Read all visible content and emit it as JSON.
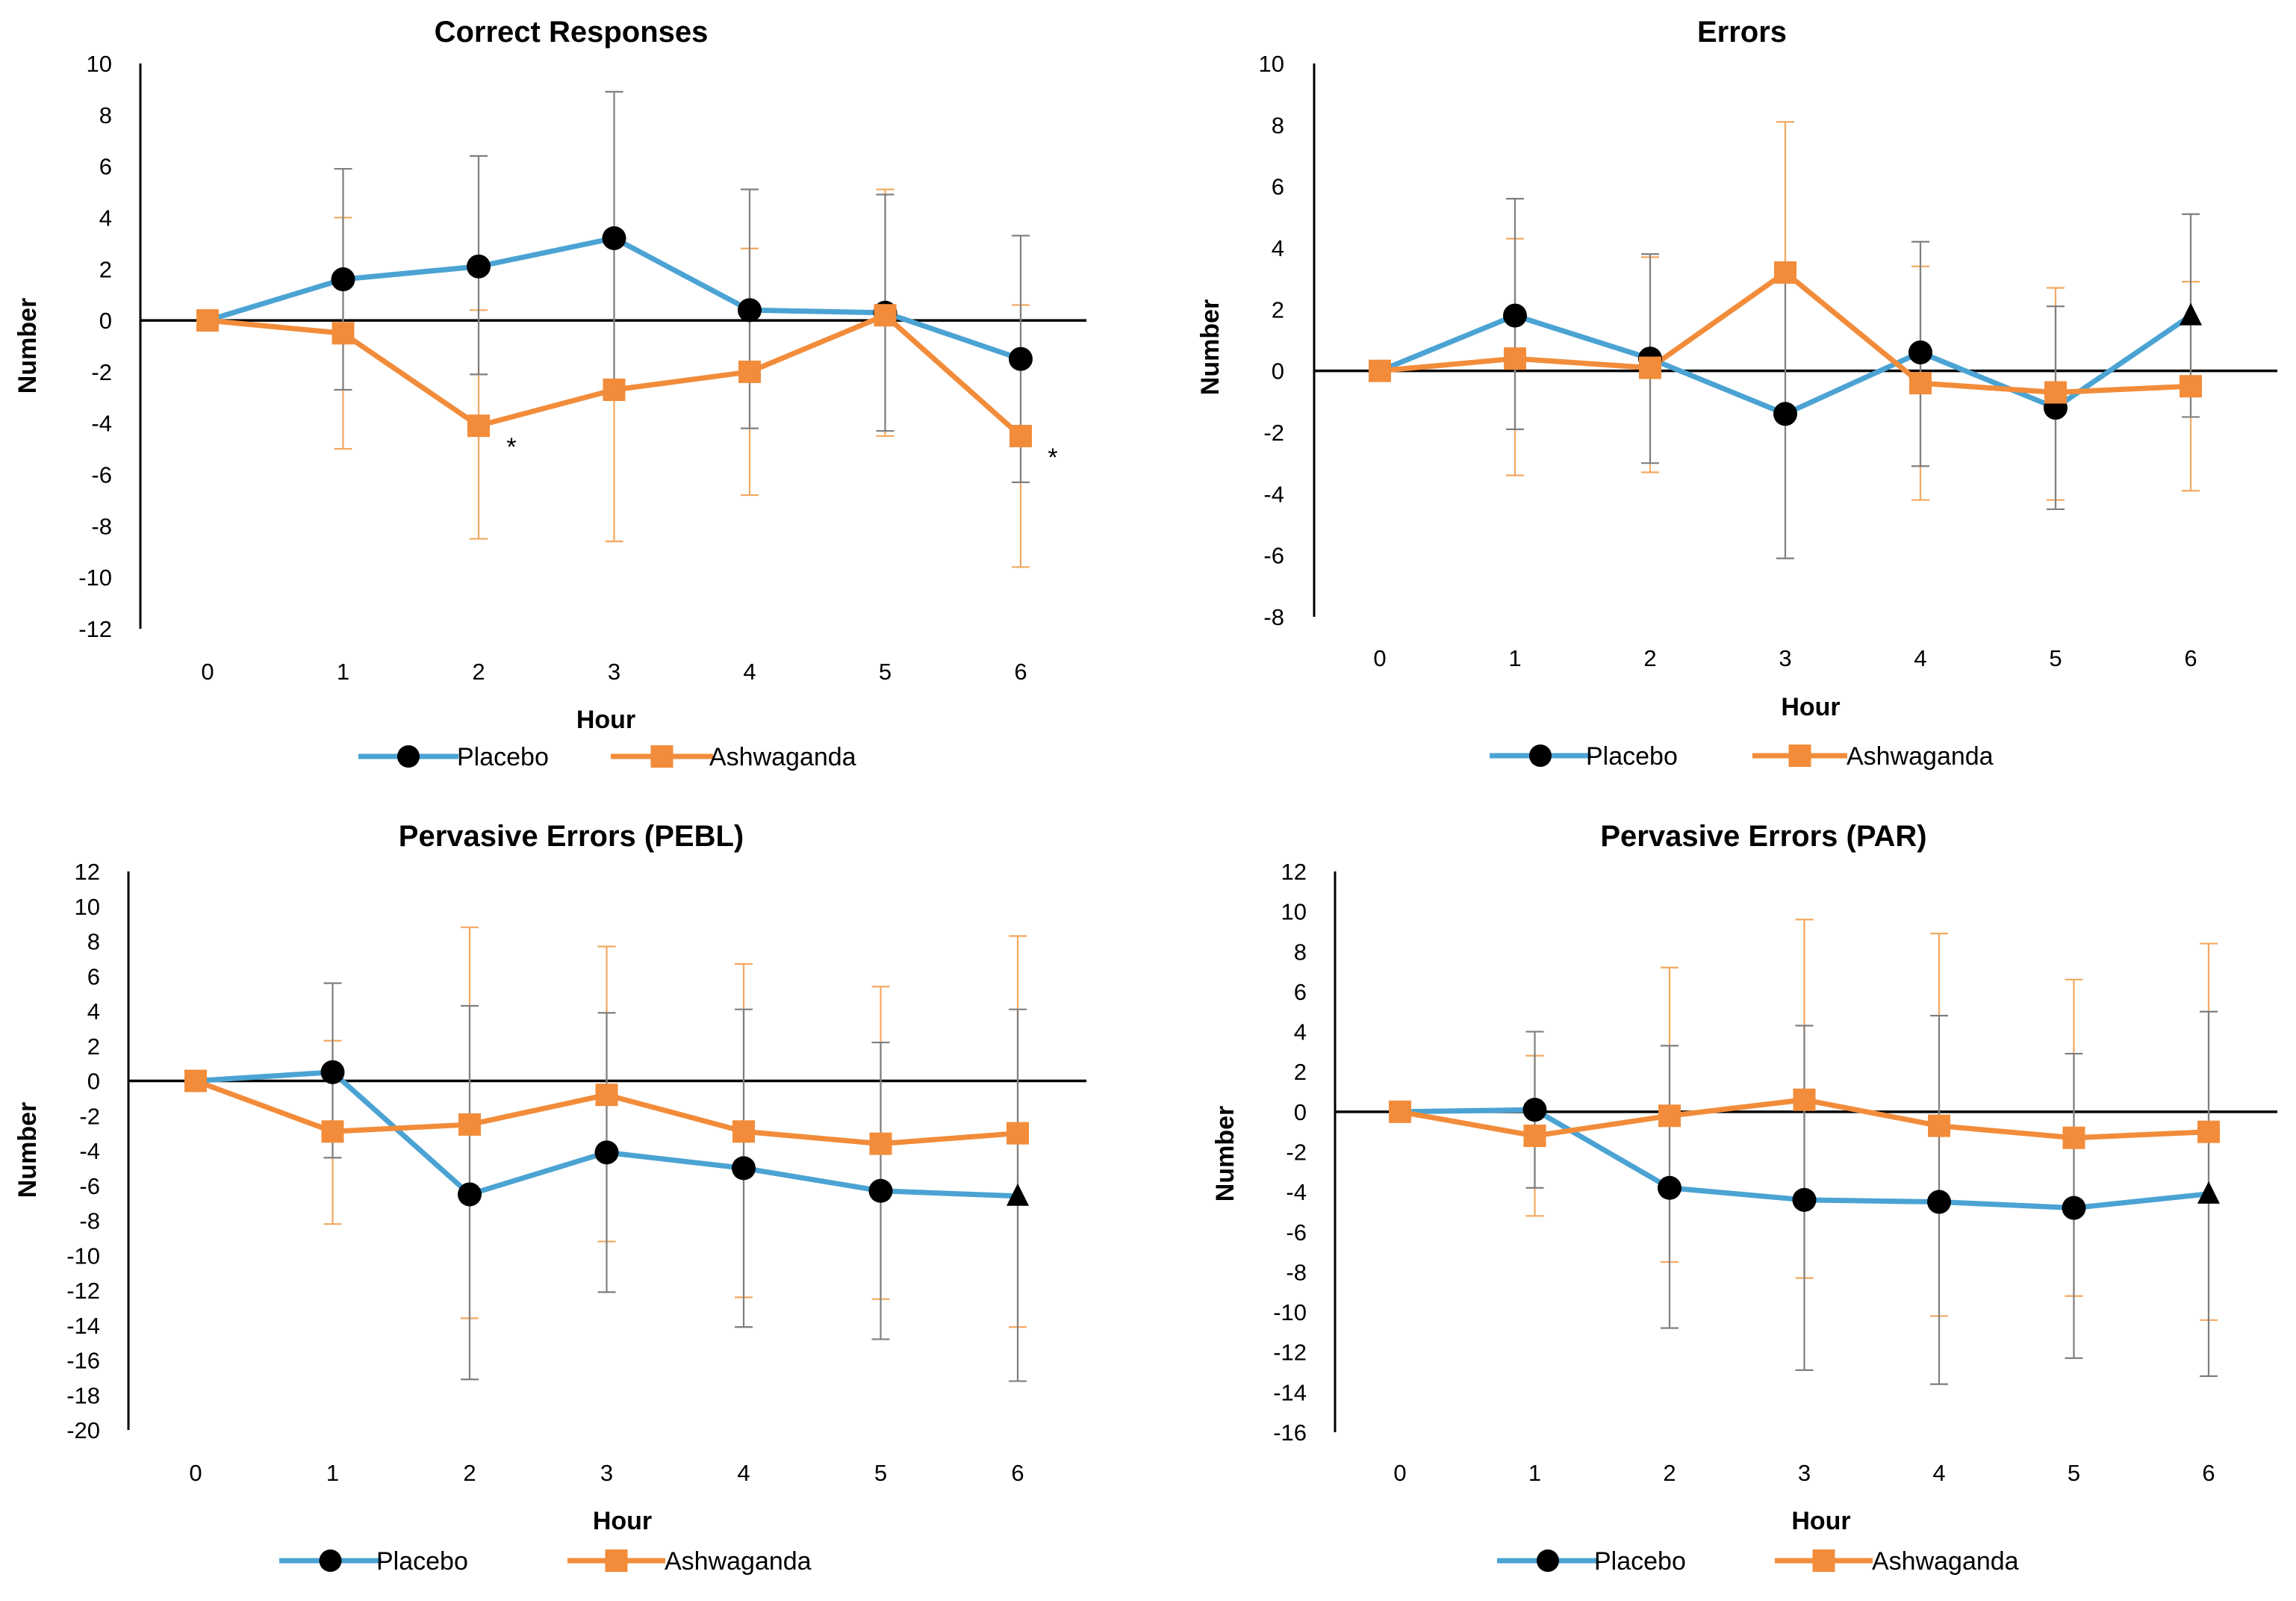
{
  "legend": {
    "series": [
      "Placebo",
      "Ashwaganda"
    ]
  },
  "colors": {
    "placebo": "#4BA3D3",
    "ashwaganda": "#F28C3A",
    "marker_placebo": "#000000",
    "axis": "#000000",
    "error_placebo": "#7f7f7f",
    "error_ashwaganda": "#F2A860"
  },
  "chart_data": [
    {
      "type": "line",
      "title": "Correct Responses",
      "xlabel": "Hour",
      "ylabel": "Number",
      "x": [
        0,
        1,
        2,
        3,
        4,
        5,
        6
      ],
      "ylim": [
        -12,
        10
      ],
      "ytick_step": 2,
      "series": [
        {
          "name": "Placebo",
          "marker": "circle",
          "values": [
            0,
            1.6,
            2.1,
            3.2,
            0.4,
            0.3,
            -1.5
          ],
          "error": [
            [
              0,
              0
            ],
            [
              -2.7,
              5.9
            ],
            [
              -2.1,
              6.4
            ],
            [
              -2.6,
              8.9
            ],
            [
              -4.2,
              5.1
            ],
            [
              -4.3,
              4.9
            ],
            [
              -6.3,
              3.3
            ]
          ],
          "final_marker": "circle"
        },
        {
          "name": "Ashwaganda",
          "marker": "square",
          "values": [
            0,
            -0.5,
            -4.1,
            -2.7,
            -2.0,
            0.2,
            -4.5
          ],
          "error": [
            [
              0,
              0
            ],
            [
              -5.0,
              4.0
            ],
            [
              -8.5,
              0.4
            ],
            [
              -8.6,
              3.1
            ],
            [
              -6.8,
              2.8
            ],
            [
              -4.5,
              5.1
            ],
            [
              -9.6,
              0.6
            ]
          ]
        }
      ],
      "annotations": [
        {
          "x": 2,
          "text": "*"
        },
        {
          "x": 6,
          "text": "*"
        }
      ]
    },
    {
      "type": "line",
      "title": "Errors",
      "xlabel": "Hour",
      "ylabel": "Number",
      "x": [
        0,
        1,
        2,
        3,
        4,
        5,
        6
      ],
      "ylim": [
        -8,
        10
      ],
      "ytick_step": 2,
      "series": [
        {
          "name": "Placebo",
          "marker": "circle",
          "values": [
            0,
            1.8,
            0.4,
            -1.4,
            0.6,
            -1.2,
            1.8
          ],
          "error": [
            [
              0,
              0
            ],
            [
              -1.9,
              5.6
            ],
            [
              -3.0,
              3.8
            ],
            [
              -6.1,
              3.2
            ],
            [
              -3.1,
              4.2
            ],
            [
              -4.5,
              2.1
            ],
            [
              -1.5,
              5.1
            ]
          ],
          "final_marker": "triangle"
        },
        {
          "name": "Ashwaganda",
          "marker": "square",
          "values": [
            0,
            0.4,
            0.1,
            3.2,
            -0.4,
            -0.7,
            -0.5
          ],
          "error": [
            [
              0,
              0
            ],
            [
              -3.4,
              4.3
            ],
            [
              -3.3,
              3.7
            ],
            [
              -1.4,
              8.1
            ],
            [
              -4.2,
              3.4
            ],
            [
              -4.2,
              2.7
            ],
            [
              -3.9,
              2.9
            ]
          ]
        }
      ],
      "annotations": []
    },
    {
      "type": "line",
      "title": "Pervasive Errors (PEBL)",
      "xlabel": "Hour",
      "ylabel": "Number",
      "x": [
        0,
        1,
        2,
        3,
        4,
        5,
        6
      ],
      "ylim": [
        -20,
        12
      ],
      "ytick_step": 2,
      "series": [
        {
          "name": "Placebo",
          "marker": "circle",
          "values": [
            0,
            0.5,
            -6.5,
            -4.1,
            -5.0,
            -6.3,
            -6.6
          ],
          "error": [
            [
              0,
              0
            ],
            [
              -4.4,
              5.6
            ],
            [
              -17.1,
              4.3
            ],
            [
              -12.1,
              3.9
            ],
            [
              -14.1,
              4.1
            ],
            [
              -14.8,
              2.2
            ],
            [
              -17.2,
              4.1
            ]
          ],
          "final_marker": "triangle"
        },
        {
          "name": "Ashwaganda",
          "marker": "square",
          "values": [
            0,
            -2.9,
            -2.5,
            -0.8,
            -2.9,
            -3.6,
            -3.0
          ],
          "error": [
            [
              0,
              0
            ],
            [
              -8.2,
              2.3
            ],
            [
              -13.6,
              8.8
            ],
            [
              -9.2,
              7.7
            ],
            [
              -12.4,
              6.7
            ],
            [
              -12.5,
              5.4
            ],
            [
              -14.1,
              8.3
            ]
          ]
        }
      ],
      "annotations": []
    },
    {
      "type": "line",
      "title": "Pervasive Errors (PAR)",
      "xlabel": "Hour",
      "ylabel": "Number",
      "x": [
        0,
        1,
        2,
        3,
        4,
        5,
        6
      ],
      "ylim": [
        -16,
        12
      ],
      "ytick_step": 2,
      "series": [
        {
          "name": "Placebo",
          "marker": "circle",
          "values": [
            0,
            0.1,
            -3.8,
            -4.4,
            -4.5,
            -4.8,
            -4.1
          ],
          "error": [
            [
              0,
              0
            ],
            [
              -3.8,
              4.0
            ],
            [
              -10.8,
              3.3
            ],
            [
              -12.9,
              4.3
            ],
            [
              -13.6,
              4.8
            ],
            [
              -12.3,
              2.9
            ],
            [
              -13.2,
              5.0
            ]
          ],
          "final_marker": "triangle"
        },
        {
          "name": "Ashwaganda",
          "marker": "square",
          "values": [
            0,
            -1.2,
            -0.2,
            0.6,
            -0.7,
            -1.3,
            -1.0
          ],
          "error": [
            [
              0,
              0
            ],
            [
              -5.2,
              2.8
            ],
            [
              -7.5,
              7.2
            ],
            [
              -8.3,
              9.6
            ],
            [
              -10.2,
              8.9
            ],
            [
              -9.2,
              6.6
            ],
            [
              -10.4,
              8.4
            ]
          ]
        }
      ],
      "annotations": []
    }
  ]
}
